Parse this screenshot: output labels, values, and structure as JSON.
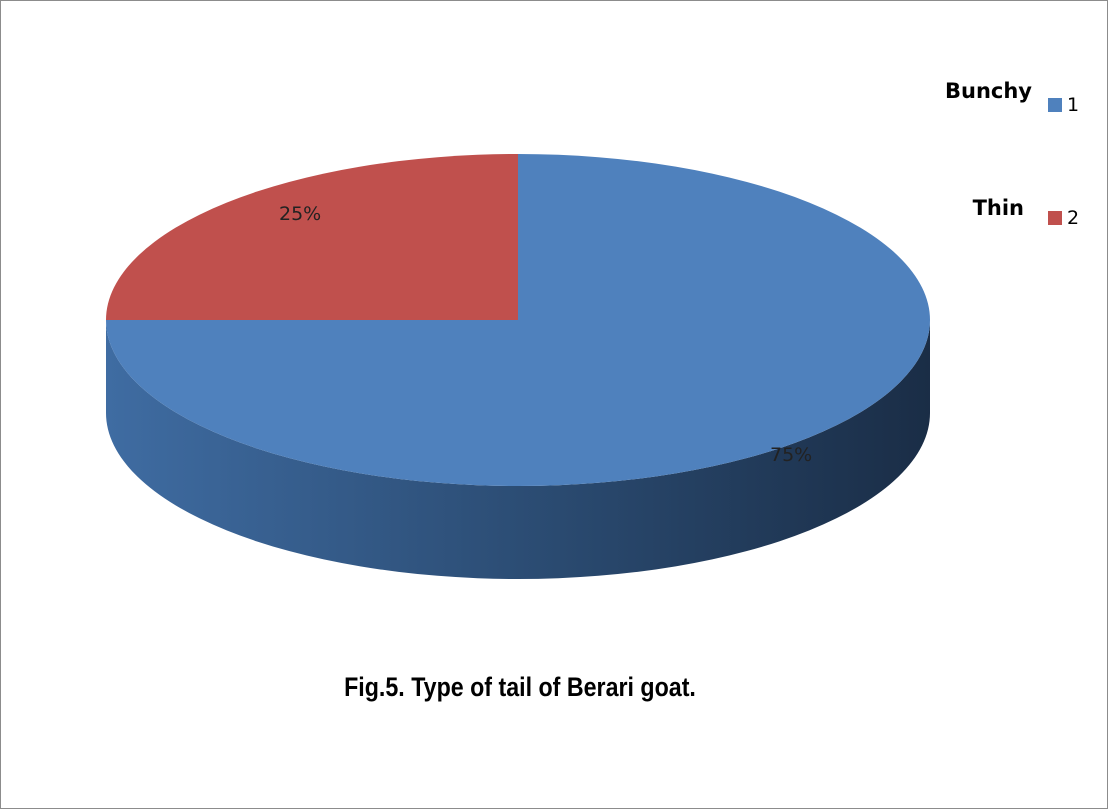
{
  "chart_data": {
    "type": "pie",
    "style": "3d",
    "slices": [
      {
        "name": "1",
        "value": 75,
        "label": "75%",
        "color": "#4f81bd",
        "side_color": "#2c4d75"
      },
      {
        "name": "2",
        "value": 25,
        "label": "25%",
        "color": "#c0504d",
        "side_color": "#8c3836"
      }
    ],
    "legend": {
      "placement": "top-right",
      "entries": [
        {
          "category": "Bunchy",
          "key": "1",
          "color": "#4f81bd"
        },
        {
          "category": "Thin",
          "key": "2",
          "color": "#c0504d"
        }
      ]
    },
    "caption": "Fig.5. Type of tail of Berari goat."
  }
}
